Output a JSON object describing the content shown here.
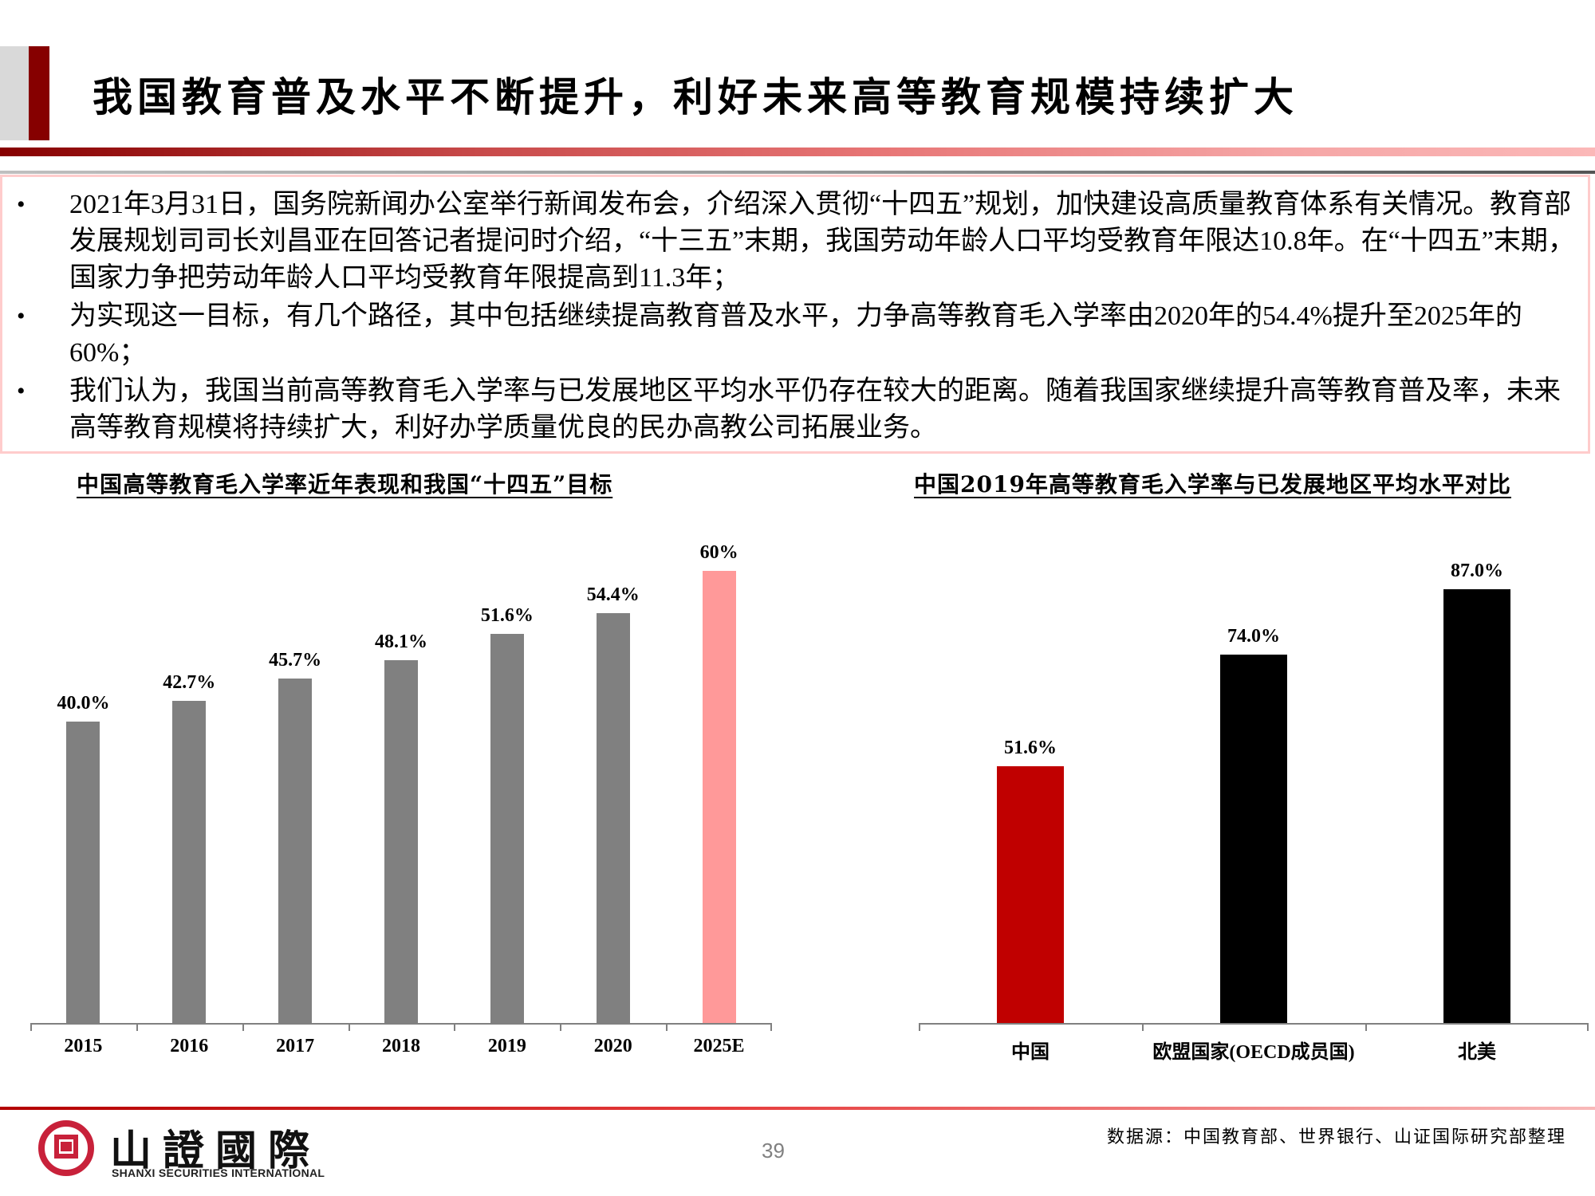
{
  "header": {
    "title": "我国教育普及水平不断提升，利好未来高等教育规模持续扩大"
  },
  "bullets": [
    {
      "text": "2021年3月31日，国务院新闻办公室举行新闻发布会，介绍深入贯彻“十四五”规划，加快建设高质量教育体系有关情况。教育部发展规划司司长刘昌亚在回答记者提问时介绍，“十三五”末期，我国劳动年龄人口平均受教育年限达10.8年。在“十四五”末期，国家力争把劳动年龄人口平均受教育年限提高到11.3年；"
    },
    {
      "text": "为实现这一目标，有几个路径，其中包括继续提高教育普及水平，力争高等教育毛入学率由2020年的54.4%提升至2025年的60%；"
    },
    {
      "text": "我们认为，我国当前高等教育毛入学率与已发展地区平均水平仍存在较大的距离。随着我国家继续提升高等教育普及率，未来高等教育规模将持续扩大，利好办学质量优良的民办高教公司拓展业务。"
    }
  ],
  "bullet_marker": "•",
  "chart_data": [
    {
      "type": "bar",
      "title": "中国高等教育毛入学率近年表现和我国“十四五”目标",
      "xlabel": "",
      "ylabel": "",
      "categories": [
        "2015",
        "2016",
        "2017",
        "2018",
        "2019",
        "2020",
        "2025E"
      ],
      "values": [
        40.0,
        42.7,
        45.7,
        48.1,
        51.6,
        54.4,
        60
      ],
      "value_labels": [
        "40.0%",
        "42.7%",
        "45.7%",
        "48.1%",
        "51.6%",
        "54.4%",
        "60%"
      ],
      "colors": [
        "#808080",
        "#808080",
        "#808080",
        "#808080",
        "#808080",
        "#808080",
        "#ff9999"
      ],
      "ylim": [
        0,
        65
      ],
      "grid": false,
      "legend": "none"
    },
    {
      "type": "bar",
      "title": "中国2019年高等教育毛入学率与已发展地区平均水平对比",
      "xlabel": "",
      "ylabel": "",
      "categories": [
        "中国",
        "欧盟国家(OECD成员国)",
        "北美"
      ],
      "values": [
        51.6,
        74.0,
        87.0
      ],
      "value_labels": [
        "51.6%",
        "74.0%",
        "87.0%"
      ],
      "colors": [
        "#c00000",
        "#000000",
        "#000000"
      ],
      "ylim": [
        0,
        95
      ],
      "grid": false,
      "legend": "none"
    }
  ],
  "footer": {
    "logo_cn": "山證國際",
    "logo_en": "SHANXI SECURITIES INTERNATIONAL",
    "page_number": "39",
    "source": "数据源：中国教育部、世界银行、山证国际研究部整理"
  },
  "colors": {
    "brand_red": "#860000",
    "logo_red": "#c8213a",
    "bar_gray": "#808080",
    "bar_target": "#ff9999",
    "bar_china": "#c00000",
    "bar_dark": "#000000",
    "box_border": "#ffcccc"
  }
}
